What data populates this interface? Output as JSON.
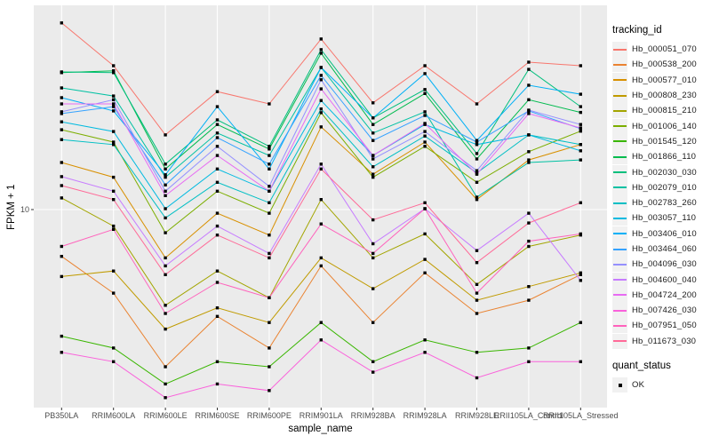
{
  "figure": {
    "panel_bg": "#EBEBEB",
    "grid_color": "#FFFFFF",
    "tick_color": "#333333",
    "tick_label_color": "#4D4D4D",
    "point_color": "#000000",
    "legend": {
      "tracking_title": "tracking_id",
      "quant_title": "quant_status",
      "quant_label": "OK"
    }
  },
  "chart_data": {
    "type": "line",
    "title": "",
    "xlabel": "sample_name",
    "ylabel": "FPKM + 1",
    "y_scale": "log10",
    "y_ticks": [
      10
    ],
    "ylim": [
      0.9,
      110
    ],
    "grid": "major-on",
    "legend_position": "right",
    "point_shape": "square",
    "quant_status": "OK",
    "x_categories": [
      "PB350LA",
      "RRIM600LA",
      "RRIM600LE",
      "RRIM600SE",
      "RRIM600PE",
      "RRIM901LA",
      "RRIM928BA",
      "RRIM928LA",
      "RRIM928LE",
      "RRII105LA_Control",
      "RRII105LA_Stressed"
    ],
    "series": [
      {
        "name": "Hb_000051_070",
        "color": "#F8766D",
        "values": [
          82,
          50.6,
          23.2,
          37.8,
          32.9,
          68.4,
          33.3,
          50.6,
          32.9,
          52.7,
          50.6
        ]
      },
      {
        "name": "Hb_000538_200",
        "color": "#EA8331",
        "values": [
          5.9,
          3.9,
          1.7,
          3.0,
          2.1,
          5.3,
          2.8,
          4.9,
          3.1,
          3.6,
          4.8
        ]
      },
      {
        "name": "Hb_000577_010",
        "color": "#D89000",
        "values": [
          17.0,
          14.4,
          5.8,
          9.6,
          7.5,
          25.4,
          14.9,
          21.4,
          11.2,
          17.5,
          20.8
        ]
      },
      {
        "name": "Hb_000808_230",
        "color": "#C09B00",
        "values": [
          4.7,
          5.0,
          2.6,
          3.3,
          2.8,
          5.8,
          4.1,
          5.7,
          3.6,
          4.2,
          4.9
        ]
      },
      {
        "name": "Hb_000815_210",
        "color": "#A3A500",
        "values": [
          11.4,
          8.3,
          3.4,
          5.0,
          3.7,
          11.2,
          5.8,
          7.6,
          4.3,
          6.6,
          7.5
        ]
      },
      {
        "name": "Hb_001006_140",
        "color": "#7CAE00",
        "values": [
          24.6,
          21.4,
          7.7,
          12.3,
          9.6,
          29.8,
          14.4,
          20.4,
          13.6,
          19.2,
          24.2
        ]
      },
      {
        "name": "Hb_001545_120",
        "color": "#39B600",
        "values": [
          2.4,
          2.1,
          1.4,
          1.8,
          1.7,
          2.8,
          1.8,
          2.3,
          2.0,
          2.1,
          2.8
        ]
      },
      {
        "name": "Hb_001866_110",
        "color": "#00BB4E",
        "values": [
          46.8,
          47.8,
          15.8,
          26.1,
          19.8,
          58.3,
          26.1,
          37.0,
          17.7,
          34.5,
          29.9
        ]
      },
      {
        "name": "Hb_002030_030",
        "color": "#00BF7D",
        "values": [
          47.2,
          46.8,
          16.7,
          27.5,
          20.4,
          60.7,
          28.1,
          38.7,
          18.8,
          48.6,
          31.9
        ]
      },
      {
        "name": "Hb_002079_010",
        "color": "#00C1A3",
        "values": [
          39.4,
          36.0,
          14.4,
          23.7,
          18.4,
          49.6,
          23.7,
          30.1,
          11.5,
          17.0,
          17.5
        ]
      },
      {
        "name": "Hb_002783_260",
        "color": "#00BFC4",
        "values": [
          22.0,
          20.8,
          9.1,
          13.6,
          10.8,
          31.1,
          16.2,
          22.9,
          15.1,
          23.2,
          20.8
        ]
      },
      {
        "name": "Hb_003057_110",
        "color": "#00BAE0",
        "values": [
          26.9,
          24.1,
          10.1,
          15.8,
          12.3,
          34.2,
          18.4,
          26.1,
          20.8,
          23.2,
          19.4
        ]
      },
      {
        "name": "Hb_003406_010",
        "color": "#00B0F6",
        "values": [
          35.3,
          30.4,
          14.8,
          31.9,
          15.8,
          49.6,
          28.1,
          46.3,
          21.8,
          40.6,
          36.7
        ]
      },
      {
        "name": "Hb_003464_060",
        "color": "#35A2FF",
        "values": [
          29.5,
          31.9,
          13.2,
          22.5,
          16.7,
          45.4,
          21.8,
          28.9,
          21.4,
          30.4,
          24.9
        ]
      },
      {
        "name": "Hb_004096_030",
        "color": "#9590FF",
        "values": [
          30.1,
          34.5,
          12.3,
          20.4,
          13.0,
          43.2,
          17.7,
          24.1,
          15.5,
          30.7,
          26.1
        ]
      },
      {
        "name": "Hb_004600_040",
        "color": "#C77CFF",
        "values": [
          14.5,
          12.3,
          5.3,
          8.3,
          6.1,
          16.7,
          6.8,
          10.1,
          6.3,
          9.6,
          4.5
        ]
      },
      {
        "name": "Hb_004724_200",
        "color": "#E76BF3",
        "values": [
          32.9,
          32.9,
          11.7,
          18.4,
          12.3,
          39.0,
          18.4,
          26.4,
          14.9,
          29.5,
          25.1
        ]
      },
      {
        "name": "Hb_007426_030",
        "color": "#FA62DB",
        "values": [
          2.0,
          1.8,
          1.2,
          1.4,
          1.3,
          2.3,
          1.6,
          2.0,
          1.5,
          1.8,
          1.8
        ]
      },
      {
        "name": "Hb_007951_050",
        "color": "#FF62BC",
        "values": [
          6.6,
          8.0,
          3.1,
          4.4,
          3.7,
          8.5,
          6.1,
          10.1,
          3.9,
          7.0,
          7.6
        ]
      },
      {
        "name": "Hb_011673_030",
        "color": "#FF6A98",
        "values": [
          13.1,
          11.2,
          4.8,
          7.5,
          5.8,
          15.8,
          8.9,
          10.8,
          5.5,
          8.6,
          10.8
        ]
      }
    ]
  }
}
